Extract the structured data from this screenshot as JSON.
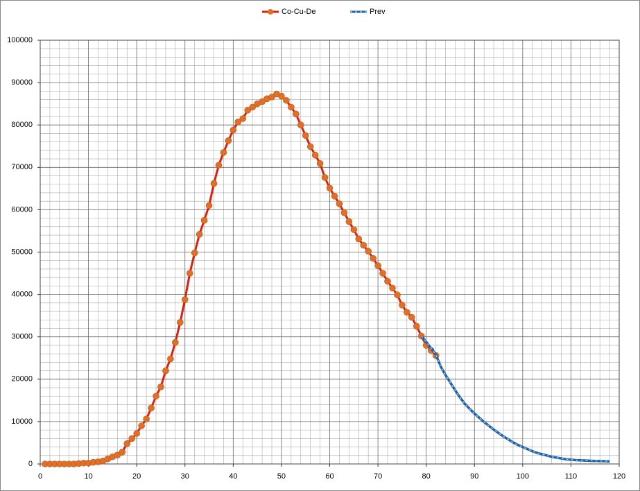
{
  "chart_data": {
    "type": "line",
    "series": [
      {
        "name": "Co-Cu-De",
        "color": "#dd1f10",
        "marker_color": "#e07028",
        "x": [
          1,
          2,
          3,
          4,
          5,
          6,
          7,
          8,
          9,
          10,
          11,
          12,
          13,
          14,
          15,
          16,
          17,
          18,
          19,
          20,
          21,
          22,
          23,
          24,
          25,
          26,
          27,
          28,
          29,
          30,
          31,
          32,
          33,
          34,
          35,
          36,
          37,
          38,
          39,
          40,
          41,
          42,
          43,
          44,
          45,
          46,
          47,
          48,
          49,
          50,
          51,
          52,
          53,
          54,
          55,
          56,
          57,
          58,
          59,
          60,
          61,
          62,
          63,
          64,
          65,
          66,
          67,
          68,
          69,
          70,
          71,
          72,
          73,
          74,
          75,
          76,
          77,
          78,
          79,
          80,
          81,
          82
        ],
        "values": [
          0,
          0,
          0,
          0,
          0,
          0,
          0,
          100,
          200,
          200,
          400,
          500,
          700,
          1200,
          1700,
          2100,
          2800,
          4800,
          6000,
          7200,
          9000,
          10600,
          13200,
          16000,
          18200,
          22000,
          24800,
          28700,
          33400,
          38800,
          45000,
          49800,
          54200,
          57500,
          61000,
          66200,
          70500,
          73500,
          76300,
          78800,
          80700,
          81500,
          83500,
          84200,
          85000,
          85500,
          86200,
          86600,
          87300,
          86800,
          85800,
          84200,
          82600,
          80000,
          77500,
          74900,
          72900,
          70900,
          67600,
          65100,
          63200,
          61400,
          59300,
          57200,
          55300,
          53100,
          51600,
          50200,
          48500,
          46800,
          45000,
          43100,
          41500,
          39900,
          37500,
          35800,
          34600,
          32500,
          30200,
          28000,
          26800,
          25600
        ]
      },
      {
        "name": "Prev",
        "color": "#1f5fa8",
        "dash_color": "#9cc8d8",
        "x": [
          79,
          80,
          81,
          82,
          83,
          84,
          85,
          86,
          87,
          88,
          89,
          90,
          91,
          92,
          93,
          94,
          95,
          96,
          97,
          98,
          99,
          100,
          101,
          102,
          103,
          104,
          105,
          106,
          107,
          108,
          109,
          110,
          111,
          112,
          113,
          114,
          115,
          116,
          117,
          118
        ],
        "values": [
          30200,
          28800,
          27300,
          25800,
          23000,
          21000,
          19200,
          17400,
          15700,
          14200,
          13000,
          11900,
          10900,
          9900,
          9000,
          8100,
          7300,
          6500,
          5800,
          5100,
          4500,
          4000,
          3500,
          3000,
          2600,
          2300,
          2000,
          1700,
          1500,
          1300,
          1100,
          1000,
          900,
          850,
          800,
          750,
          700,
          700,
          650,
          600
        ]
      }
    ],
    "xlim": [
      0,
      120
    ],
    "xticks": [
      0,
      10,
      20,
      30,
      40,
      50,
      60,
      70,
      80,
      90,
      100,
      110,
      120
    ],
    "ylim": [
      0,
      100000
    ],
    "yticks": [
      0,
      10000,
      20000,
      30000,
      40000,
      50000,
      60000,
      70000,
      80000,
      90000,
      100000
    ],
    "grid": true,
    "legend": "top"
  }
}
